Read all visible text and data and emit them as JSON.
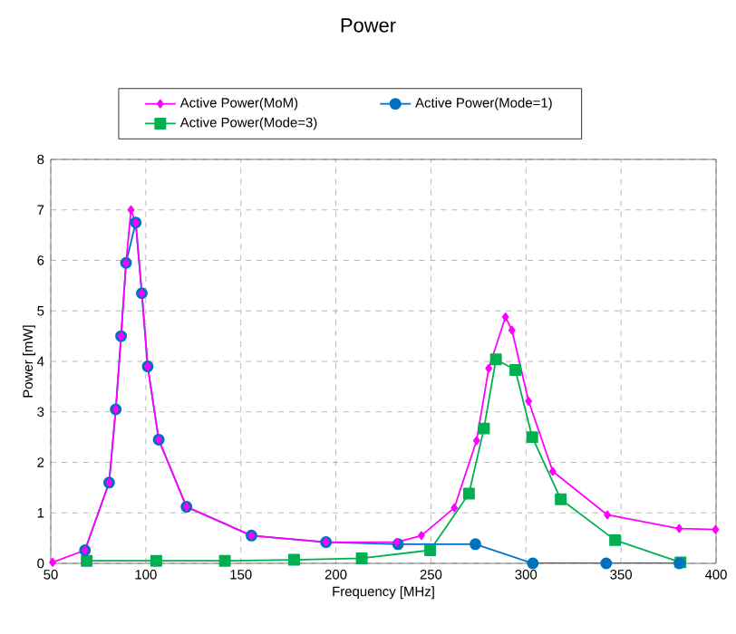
{
  "chart_data": {
    "type": "line",
    "title": "Power",
    "xlabel": "Frequency [MHz]",
    "ylabel": "Power [mW]",
    "xlim": [
      50,
      400
    ],
    "xticks": [
      50,
      100,
      150,
      200,
      250,
      300,
      350,
      400
    ],
    "ylim": [
      0,
      8
    ],
    "yticks": [
      0,
      1,
      2,
      3,
      4,
      5,
      6,
      7,
      8
    ],
    "grid": true,
    "legend": "top",
    "line_style": "solid",
    "series": [
      {
        "name": "Active Power(MoM)",
        "color": "#ff00ff",
        "marker": "diamond",
        "x": [
          51,
          68,
          80.7,
          84.2,
          87,
          89.6,
          92.2,
          94.7,
          97.9,
          101,
          106.8,
          121.4,
          155.6,
          194.8,
          232,
          245,
          262.3,
          274,
          280.4,
          289.2,
          292.6,
          301.4,
          314.1,
          342.8,
          380.6,
          399.7
        ],
        "values": [
          0.02,
          0.26,
          1.6,
          3.05,
          4.5,
          5.95,
          7.0,
          6.75,
          5.35,
          3.9,
          2.45,
          1.12,
          0.55,
          0.42,
          0.42,
          0.55,
          1.1,
          2.43,
          3.86,
          4.88,
          4.62,
          3.21,
          1.82,
          0.96,
          0.69,
          0.67
        ]
      },
      {
        "name": "Active Power(Mode=1)",
        "color": "#0070c0",
        "marker": "circle",
        "x": [
          68,
          80.7,
          84.2,
          87,
          89.6,
          94.7,
          97.9,
          101,
          106.8,
          121.4,
          155.6,
          194.8,
          232.7,
          273.4,
          303.6,
          342.2,
          380.7
        ],
        "values": [
          0.26,
          1.6,
          3.05,
          4.5,
          5.95,
          6.75,
          5.35,
          3.9,
          2.45,
          1.12,
          0.55,
          0.42,
          0.38,
          0.38,
          0.0,
          0.0,
          0.0
        ]
      },
      {
        "name": "Active Power(Mode=3)",
        "color": "#00b050",
        "marker": "square",
        "x": [
          68.9,
          105.5,
          141.6,
          178,
          213.6,
          249.6,
          270,
          277.9,
          284.2,
          294.4,
          303.3,
          318.3,
          346.9,
          381.3
        ],
        "values": [
          0.05,
          0.05,
          0.05,
          0.07,
          0.1,
          0.26,
          1.38,
          2.67,
          4.04,
          3.83,
          2.5,
          1.27,
          0.46,
          0.02
        ]
      }
    ]
  }
}
